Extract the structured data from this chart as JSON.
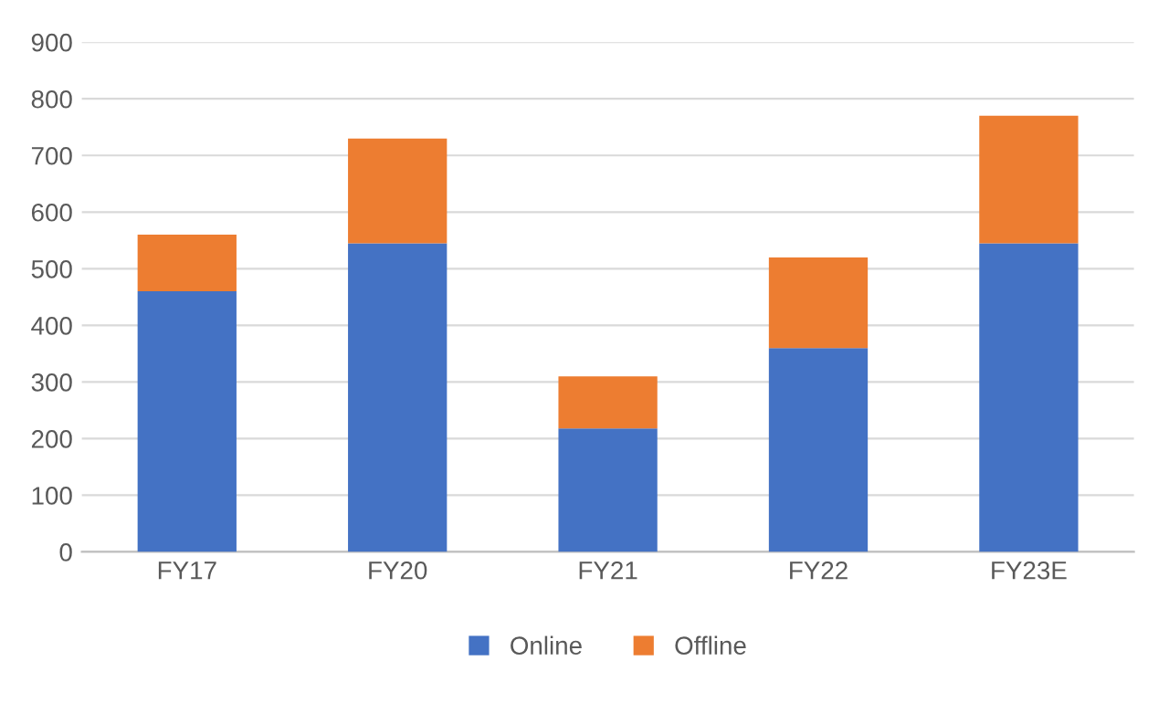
{
  "chart_data": {
    "type": "bar",
    "stacked": true,
    "categories": [
      "FY17",
      "FY20",
      "FY21",
      "FY22",
      "FY23E"
    ],
    "series": [
      {
        "name": "Online",
        "color": "#4472c4",
        "values": [
          460,
          545,
          218,
          360,
          545
        ]
      },
      {
        "name": "Offline",
        "color": "#ed7d31",
        "values": [
          100,
          185,
          92,
          160,
          225
        ]
      }
    ],
    "ylim": [
      0,
      900
    ],
    "yticks": [
      0,
      100,
      200,
      300,
      400,
      500,
      600,
      700,
      800,
      900
    ],
    "grid": "y",
    "legend": "bottom"
  }
}
